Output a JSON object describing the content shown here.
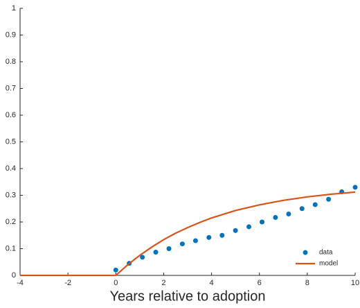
{
  "chart_data": {
    "type": "line",
    "xlabel": "Years relative to adoption",
    "xlim": [
      -4,
      10
    ],
    "xticks": [
      -4,
      -2,
      0,
      2,
      4,
      6,
      8,
      10
    ],
    "ylim": [
      0,
      1
    ],
    "yticks": [
      0,
      0.1,
      0.2,
      0.3,
      0.4,
      0.5,
      0.6,
      0.7,
      0.8,
      0.9,
      1
    ],
    "grid": false,
    "legend": "lower right",
    "series": [
      {
        "name": "data",
        "type": "scatter",
        "color": "#0072bd",
        "x": [
          0,
          0.56,
          1.11,
          1.67,
          2.22,
          2.78,
          3.33,
          3.89,
          4.44,
          5,
          5.56,
          6.11,
          6.67,
          7.22,
          7.78,
          8.33,
          8.89,
          9.44,
          10
        ],
        "values": [
          0.02,
          0.045,
          0.068,
          0.087,
          0.1,
          0.118,
          0.13,
          0.142,
          0.15,
          0.168,
          0.182,
          0.2,
          0.217,
          0.23,
          0.25,
          0.265,
          0.285,
          0.313,
          0.33
        ]
      },
      {
        "name": "model",
        "type": "line",
        "color": "#d95319",
        "x": [
          -4,
          0,
          0.5,
          1,
          1.5,
          2,
          2.5,
          3,
          3.5,
          4,
          5,
          6,
          7,
          8,
          9,
          10
        ],
        "values": [
          0,
          0,
          0.04,
          0.075,
          0.106,
          0.134,
          0.158,
          0.179,
          0.198,
          0.215,
          0.243,
          0.264,
          0.281,
          0.294,
          0.304,
          0.312
        ]
      }
    ]
  }
}
